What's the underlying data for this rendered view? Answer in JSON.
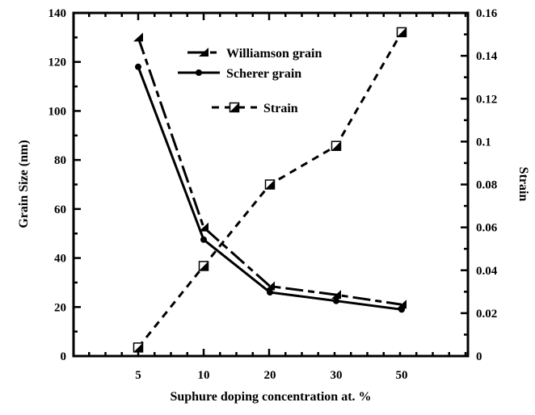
{
  "chart_data": {
    "type": "line",
    "xlabel": "Suphure doping concentration at. %",
    "ylabel": "Grain Size (nm)",
    "y2label": "Strain",
    "categories": [
      "5",
      "10",
      "20",
      "30",
      "50"
    ],
    "ylim": [
      0,
      140
    ],
    "yticks": [
      "0",
      "20",
      "40",
      "60",
      "80",
      "100",
      "120",
      "140"
    ],
    "y2lim": [
      0,
      0.16
    ],
    "y2ticks": [
      "0",
      "0.02",
      "0.04",
      "0.06",
      "0.08",
      "0.1",
      "0.12",
      "0.14",
      "0.16"
    ],
    "grid": false,
    "legend_position": "top-center",
    "series": [
      {
        "name": "Williamson grain",
        "axis": "left",
        "style": "dash-dot",
        "marker": "triangle",
        "values": [
          130,
          52.5,
          28.5,
          25,
          21
        ]
      },
      {
        "name": "Scherer grain",
        "axis": "left",
        "style": "solid",
        "marker": "circle",
        "values": [
          118,
          47.5,
          26,
          22.5,
          19
        ]
      },
      {
        "name": "Strain",
        "axis": "right",
        "style": "dashed",
        "marker": "half-filled-square",
        "values": [
          0.004,
          0.042,
          0.08,
          0.098,
          0.151
        ]
      }
    ],
    "color": "#000000"
  }
}
